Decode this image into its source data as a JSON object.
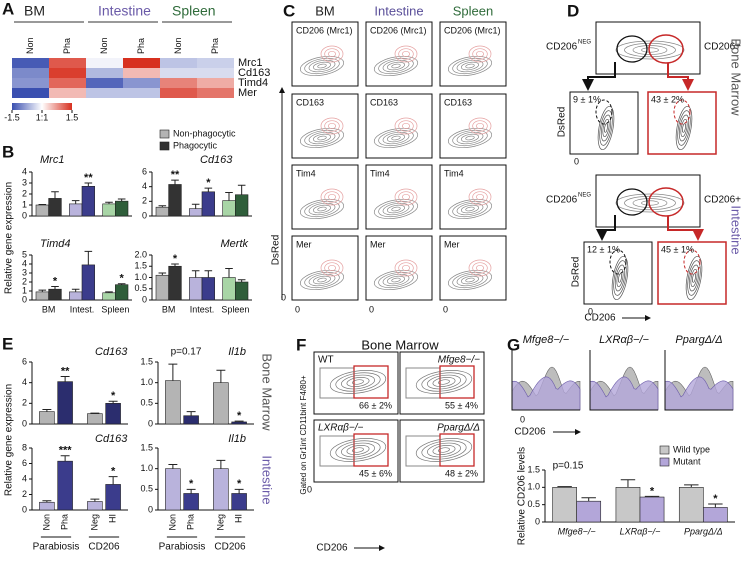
{
  "panel_labels": [
    "A",
    "B",
    "C",
    "D",
    "E",
    "F",
    "G"
  ],
  "chart_data": [
    {
      "type": "heatmap",
      "column_groups": [
        "BM",
        "Intestine",
        "Spleen"
      ],
      "columns": [
        "Non",
        "Pha",
        "Non",
        "Pha",
        "Non",
        "Pha"
      ],
      "rows": [
        "Mrc1",
        "Cd163",
        "Timd4",
        "Mer"
      ],
      "values": [
        [
          -1.4,
          1.2,
          -0.1,
          1.5,
          -0.5,
          -0.4
        ],
        [
          -1.0,
          1.4,
          -0.6,
          0.5,
          -0.3,
          -0.3
        ],
        [
          -0.9,
          1.1,
          -1.3,
          -0.9,
          0.9,
          0.6
        ],
        [
          -1.5,
          0.5,
          -0.5,
          -0.5,
          1.2,
          1.0
        ]
      ],
      "zlim": [
        -1.5,
        1.5
      ],
      "zticks": [
        -1.5,
        {
          "value": 0,
          "label": "1:1"
        },
        1.5
      ]
    },
    {
      "type": "bar",
      "title": "Mrc1",
      "categories": [
        null,
        null,
        null
      ],
      "ylim": [
        0,
        4
      ],
      "yticks": [
        0,
        1,
        2,
        3,
        4
      ],
      "series": [
        {
          "name": "Non-phagocytic",
          "colors": [
            "#b4b4b4",
            "#b9b3dc",
            "#a8d5a6"
          ],
          "values": [
            1.0,
            1.1,
            1.1
          ],
          "errors": [
            0.05,
            0.3,
            0.15
          ]
        },
        {
          "name": "Phagocytic",
          "colors": [
            "#333333",
            "#3b3c8c",
            "#2f5e3a"
          ],
          "values": [
            1.6,
            2.7,
            1.35
          ],
          "errors": [
            0.6,
            0.3,
            0.2
          ],
          "annotations": [
            null,
            "**",
            null
          ]
        }
      ]
    },
    {
      "type": "bar",
      "title": "Cd163",
      "categories": [
        null,
        null,
        null
      ],
      "ylim": [
        0,
        6
      ],
      "yticks": [
        0,
        2,
        4,
        6
      ],
      "series": [
        {
          "colors": [
            "#b4b4b4",
            "#b9b3dc",
            "#a8d5a6"
          ],
          "values": [
            1.2,
            1.0,
            2.1
          ],
          "errors": [
            0.2,
            0.6,
            1.1
          ]
        },
        {
          "colors": [
            "#333333",
            "#3b3c8c",
            "#2f5e3a"
          ],
          "values": [
            4.3,
            3.3,
            2.9
          ],
          "errors": [
            0.6,
            0.5,
            1.3
          ],
          "annotations": [
            "**",
            "*",
            null
          ]
        }
      ]
    },
    {
      "type": "bar",
      "title": "Timd4",
      "categories": [
        "BM",
        "Intest.",
        "Spleen"
      ],
      "ylim": [
        0,
        5
      ],
      "yticks": [
        0,
        1,
        2,
        3,
        4,
        5
      ],
      "series": [
        {
          "colors": [
            "#b4b4b4",
            "#b9b3dc",
            "#a8d5a6"
          ],
          "values": [
            0.9,
            0.9,
            0.8
          ],
          "errors": [
            0.2,
            0.3,
            0.1
          ]
        },
        {
          "colors": [
            "#333333",
            "#3b3c8c",
            "#2f5e3a"
          ],
          "values": [
            1.2,
            3.9,
            1.7
          ],
          "errors": [
            0.3,
            1.5,
            0.1
          ],
          "annotations": [
            "*",
            null,
            "*"
          ]
        }
      ]
    },
    {
      "type": "bar",
      "title": "Mertk",
      "categories": [
        "BM",
        "Intest.",
        "Spleen"
      ],
      "ylim": [
        0,
        2
      ],
      "yticks": [
        0,
        0.5,
        {
          "value": 1,
          "label": "1.0"
        },
        1.5,
        {
          "value": 2,
          "label": "2.0"
        }
      ],
      "series": [
        {
          "colors": [
            "#b4b4b4",
            "#b9b3dc",
            "#a8d5a6"
          ],
          "values": [
            1.1,
            1.0,
            1.0
          ],
          "errors": [
            0.1,
            0.3,
            0.4
          ]
        },
        {
          "colors": [
            "#333333",
            "#3b3c8c",
            "#2f5e3a"
          ],
          "values": [
            1.5,
            1.0,
            0.8
          ],
          "errors": [
            0.1,
            0.3,
            0.1
          ],
          "annotations": [
            "*",
            null,
            null
          ]
        }
      ]
    },
    {
      "type": "bar",
      "title": "Cd163",
      "categories": [
        null,
        null,
        null,
        null
      ],
      "ylim": [
        0,
        6
      ],
      "yticks": [
        0,
        2,
        4,
        6
      ],
      "colors": [
        "#b4b4b4",
        "#2b2d6e",
        "#b4b4b4",
        "#2b2d6e"
      ],
      "values": [
        1.2,
        4.1,
        1.0,
        2.0
      ],
      "errors": [
        0.2,
        0.5,
        0.05,
        0.2
      ],
      "annotations": [
        null,
        "**",
        null,
        "*"
      ]
    },
    {
      "type": "bar",
      "title": "Il1b",
      "note": "p=0.17",
      "categories": [
        null,
        null,
        null,
        null
      ],
      "ylim": [
        0,
        1.5
      ],
      "yticks": [
        0,
        0.5,
        {
          "value": 1,
          "label": "1.0"
        },
        1.5
      ],
      "colors": [
        "#b4b4b4",
        "#2b2d6e",
        "#b4b4b4",
        "#2b2d6e"
      ],
      "values": [
        1.05,
        0.2,
        1.0,
        0.05
      ],
      "errors": [
        0.4,
        0.1,
        0.3,
        0.02
      ],
      "annotations": [
        null,
        null,
        null,
        "*"
      ]
    },
    {
      "type": "bar",
      "title": "Cd163",
      "categories": [
        "Non",
        "Pha",
        "Neg",
        "HI"
      ],
      "groups": [
        "Parabiosis",
        "CD206"
      ],
      "ylim": [
        0,
        8
      ],
      "yticks": [
        0,
        2,
        4,
        6,
        8
      ],
      "colors": [
        "#b9b3dc",
        "#3b3c8c",
        "#b9b3dc",
        "#3b3c8c"
      ],
      "values": [
        1.0,
        6.3,
        1.1,
        3.3
      ],
      "errors": [
        0.2,
        0.7,
        0.3,
        1.0
      ],
      "annotations": [
        null,
        "***",
        null,
        "*"
      ]
    },
    {
      "type": "bar",
      "title": "Il1b",
      "categories": [
        "Non",
        "Pha",
        "Neg",
        "HI"
      ],
      "groups": [
        "Parabiosis",
        "CD206"
      ],
      "ylim": [
        0,
        1.5
      ],
      "yticks": [
        0,
        0.5,
        {
          "value": 1,
          "label": "1.0"
        },
        1.5
      ],
      "colors": [
        "#b9b3dc",
        "#3b3c8c",
        "#b9b3dc",
        "#3b3c8c"
      ],
      "values": [
        1.0,
        0.4,
        1.0,
        0.4
      ],
      "errors": [
        0.1,
        0.1,
        0.2,
        0.1
      ],
      "annotations": [
        null,
        "*",
        null,
        "*"
      ]
    },
    {
      "type": "bar",
      "ylabel": "Relative CD206 levels",
      "note": "p=0.15",
      "categories": [
        "Mfge8−/−",
        "LXRαβ−/−",
        "PpargΔ/Δ"
      ],
      "ylim": [
        0,
        1.5
      ],
      "yticks": [
        0,
        0.5,
        {
          "value": 1,
          "label": "1.0"
        },
        1.5
      ],
      "series": [
        {
          "name": "Wild type",
          "color": "#c8c8c8",
          "values": [
            1.0,
            1.0,
            1.0
          ],
          "errors": [
            0.02,
            0.22,
            0.07
          ]
        },
        {
          "name": "Mutant",
          "color": "#b3a6d9",
          "values": [
            0.6,
            0.72,
            0.42
          ],
          "errors": [
            0.1,
            0.02,
            0.1
          ],
          "annotations": [
            null,
            "*",
            "*"
          ]
        }
      ]
    }
  ],
  "panel_b": {
    "y_label": "Relative gene expression"
  },
  "panel_e": {
    "y_label": "Relative gene expression",
    "sides": [
      "Bone Marrow",
      "Intestine"
    ]
  },
  "panel_c": {
    "columns": [
      "BM",
      "Intestine",
      "Spleen"
    ],
    "rows": [
      "CD206 (Mrc1)",
      "CD163",
      "Tim4",
      "Mer"
    ],
    "y_label": "DsRed",
    "zero": "0"
  },
  "panel_d": {
    "gate_neg": {
      "base": "CD206",
      "sup": "NEG"
    },
    "gate_pos": "CD206+",
    "tissues": [
      "Bone Marrow",
      "Intestine"
    ],
    "percentages": [
      [
        "9 ± 1%",
        "43 ± 2%"
      ],
      [
        "12 ± 1%",
        "45 ± 1%"
      ]
    ],
    "y_label": "DsRed",
    "x_label": "CD206",
    "zero": "0"
  },
  "panel_f": {
    "title": "Bone Marrow",
    "genotypes": [
      "WT",
      "Mfge8−/−",
      "LXRαβ−/−",
      "PpargΔ/Δ"
    ],
    "percentages": [
      "66 ± 2%",
      "55 ± 4%",
      "45 ± 6%",
      "48 ± 2%"
    ],
    "y_label": "Gated on Gr1int CD11bint F4/80+",
    "x_label": "CD206",
    "zero": "0"
  },
  "panel_g": {
    "genotypes": [
      "Mfge8−/−",
      "LXRαβ−/−",
      "PpargΔ/Δ"
    ],
    "x_label": "CD206",
    "zero": "0"
  }
}
